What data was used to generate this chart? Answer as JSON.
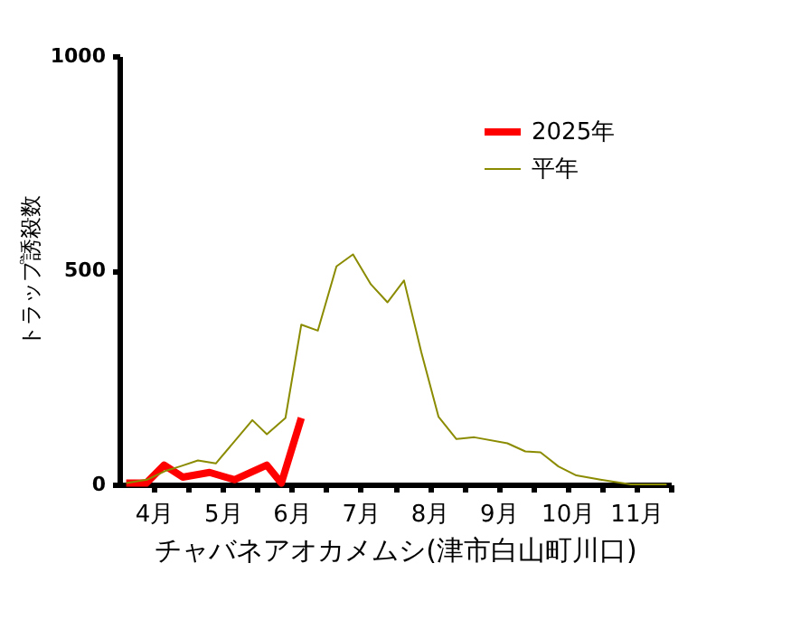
{
  "chart_data": {
    "type": "line",
    "xlabel": "チャバネアオカメムシ(津市白山町川口)",
    "ylabel": "トラップ誘殺数",
    "xlim": [
      4,
      12
    ],
    "ylim": [
      0,
      1000
    ],
    "yticks": [
      0,
      500,
      1000
    ],
    "xticks": [
      {
        "value": 4.5,
        "label": "4月"
      },
      {
        "value": 5,
        "label": null
      },
      {
        "value": 5.5,
        "label": "5月"
      },
      {
        "value": 6,
        "label": null
      },
      {
        "value": 6.5,
        "label": "6月"
      },
      {
        "value": 7,
        "label": null
      },
      {
        "value": 7.5,
        "label": "7月"
      },
      {
        "value": 8,
        "label": null
      },
      {
        "value": 8.5,
        "label": "8月"
      },
      {
        "value": 9,
        "label": null
      },
      {
        "value": 9.5,
        "label": "9月"
      },
      {
        "value": 10,
        "label": null
      },
      {
        "value": 10.5,
        "label": "10月"
      },
      {
        "value": 11,
        "label": null
      },
      {
        "value": 11.5,
        "label": "11月"
      },
      {
        "value": 12,
        "label": null
      }
    ],
    "grid": false,
    "legend": "top right",
    "marker": "none",
    "line_style": "solid",
    "series": [
      {
        "name": "2025年",
        "color": "#ff0000",
        "x": [
          4.1,
          4.39,
          4.65,
          4.92,
          5.31,
          5.67,
          6.14,
          6.35,
          6.64
        ],
        "values": [
          3,
          3,
          45,
          17,
          28,
          11,
          45,
          3,
          155
        ]
      },
      {
        "name": "平年",
        "color": "#8b8b00",
        "x": [
          4.1,
          4.4,
          4.66,
          4.88,
          5.14,
          5.4,
          5.93,
          6.14,
          6.41,
          6.64,
          6.88,
          7.15,
          7.39,
          7.65,
          7.89,
          8.13,
          8.38,
          8.63,
          8.89,
          9.15,
          9.63,
          9.89,
          10.11,
          10.37,
          10.63,
          10.98,
          11.42,
          11.94
        ],
        "values": [
          3,
          11,
          31,
          42,
          56,
          49,
          150,
          117,
          155,
          373,
          359,
          509,
          537,
          467,
          425,
          476,
          309,
          158,
          106,
          110,
          96,
          77,
          75,
          42,
          21,
          11,
          0,
          0
        ]
      }
    ]
  }
}
